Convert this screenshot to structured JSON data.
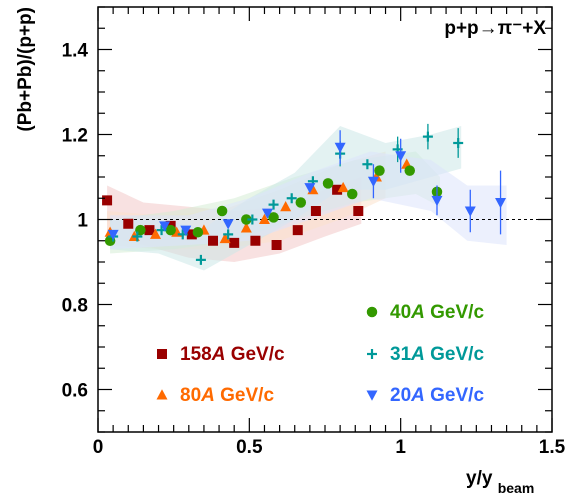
{
  "chart_data": {
    "type": "scatter",
    "title": "p+p→π⁻+X",
    "xlabel": "y/y",
    "xlabel_sub": "beam",
    "ylabel": "(Pb+Pb)/(p+p)",
    "xlim": [
      0,
      1.5
    ],
    "ylim": [
      0.5,
      1.5
    ],
    "x_ticks": [
      0,
      0.5,
      1,
      1.5
    ],
    "x_tick_labels": [
      "0",
      "0.5",
      "1",
      "1.5"
    ],
    "y_ticks": [
      0.6,
      0.8,
      1.0,
      1.2,
      1.4
    ],
    "y_tick_labels": [
      "0.6",
      "0.8",
      "1",
      "1.2",
      "1.4"
    ],
    "reference_line": 1.0,
    "legend_position": "bottom",
    "series": [
      {
        "name_value": "158",
        "name_unit": "GeV/c",
        "name_italic": "A",
        "color": "#990000",
        "marker": "square",
        "band": {
          "color": "#f2c9c9",
          "x": [
            0.03,
            0.15,
            0.3,
            0.45,
            0.6,
            0.75,
            0.87
          ],
          "lower": [
            0.96,
            0.94,
            0.91,
            0.9,
            0.92,
            0.96,
            0.99
          ],
          "upper": [
            1.08,
            1.04,
            1.03,
            1.02,
            1.03,
            1.07,
            1.1
          ]
        },
        "points": [
          {
            "x": 0.03,
            "y": 1.045,
            "err": 0.0
          },
          {
            "x": 0.1,
            "y": 0.99,
            "err": 0.0
          },
          {
            "x": 0.17,
            "y": 0.975,
            "err": 0.0
          },
          {
            "x": 0.24,
            "y": 0.985,
            "err": 0.0
          },
          {
            "x": 0.31,
            "y": 0.965,
            "err": 0.0
          },
          {
            "x": 0.38,
            "y": 0.95,
            "err": 0.0
          },
          {
            "x": 0.45,
            "y": 0.945,
            "err": 0.0
          },
          {
            "x": 0.52,
            "y": 0.95,
            "err": 0.0
          },
          {
            "x": 0.59,
            "y": 0.94,
            "err": 0.0
          },
          {
            "x": 0.66,
            "y": 0.975,
            "err": 0.0
          },
          {
            "x": 0.72,
            "y": 1.02,
            "err": 0.0
          },
          {
            "x": 0.79,
            "y": 1.07,
            "err": 0.0
          },
          {
            "x": 0.86,
            "y": 1.02,
            "err": 0.0
          }
        ]
      },
      {
        "name_value": "80",
        "name_unit": "GeV/c",
        "name_italic": "A",
        "color": "#ff6a00",
        "marker": "triangle-up",
        "band": {
          "color": "#fbe2cc",
          "x": [
            0.03,
            0.2,
            0.4,
            0.6,
            0.8,
            0.95
          ],
          "lower": [
            0.94,
            0.93,
            0.93,
            0.95,
            1.0,
            1.05
          ],
          "upper": [
            1.02,
            1.01,
            1.02,
            1.07,
            1.13,
            1.16
          ]
        },
        "points": [
          {
            "x": 0.04,
            "y": 0.97,
            "err": 0.0
          },
          {
            "x": 0.12,
            "y": 0.96,
            "err": 0.0
          },
          {
            "x": 0.19,
            "y": 0.965,
            "err": 0.0
          },
          {
            "x": 0.26,
            "y": 0.97,
            "err": 0.0
          },
          {
            "x": 0.35,
            "y": 0.975,
            "err": 0.0
          },
          {
            "x": 0.42,
            "y": 0.955,
            "err": 0.0
          },
          {
            "x": 0.49,
            "y": 0.98,
            "err": 0.0
          },
          {
            "x": 0.55,
            "y": 1.0,
            "err": 0.0
          },
          {
            "x": 0.62,
            "y": 1.03,
            "err": 0.0
          },
          {
            "x": 0.71,
            "y": 1.07,
            "err": 0.0
          },
          {
            "x": 0.81,
            "y": 1.075,
            "err": 0.0
          },
          {
            "x": 0.92,
            "y": 1.1,
            "err": 0.0
          },
          {
            "x": 1.02,
            "y": 1.13,
            "err": 0.0
          }
        ]
      },
      {
        "name_value": "40",
        "name_unit": "GeV/c",
        "name_italic": "A",
        "color": "#339900",
        "marker": "circle",
        "band": {
          "color": "#d5ecd5",
          "x": [
            0.04,
            0.25,
            0.45,
            0.65,
            0.85,
            1.05,
            1.13
          ],
          "lower": [
            0.92,
            0.93,
            0.95,
            1.0,
            1.04,
            1.06,
            1.03
          ],
          "upper": [
            1.0,
            1.02,
            1.05,
            1.1,
            1.14,
            1.16,
            1.1
          ]
        },
        "points": [
          {
            "x": 0.04,
            "y": 0.95,
            "err": 0.0
          },
          {
            "x": 0.14,
            "y": 0.975,
            "err": 0.0
          },
          {
            "x": 0.24,
            "y": 0.975,
            "err": 0.0
          },
          {
            "x": 0.33,
            "y": 0.97,
            "err": 0.0
          },
          {
            "x": 0.41,
            "y": 1.02,
            "err": 0.0
          },
          {
            "x": 0.49,
            "y": 1.0,
            "err": 0.0
          },
          {
            "x": 0.58,
            "y": 1.005,
            "err": 0.0
          },
          {
            "x": 0.67,
            "y": 1.04,
            "err": 0.0
          },
          {
            "x": 0.76,
            "y": 1.085,
            "err": 0.0
          },
          {
            "x": 0.84,
            "y": 1.06,
            "err": 0.0
          },
          {
            "x": 0.93,
            "y": 1.115,
            "err": 0.0
          },
          {
            "x": 1.03,
            "y": 1.115,
            "err": 0.0
          },
          {
            "x": 1.12,
            "y": 1.065,
            "err": 0.0
          }
        ]
      },
      {
        "name_value": "31",
        "name_unit": "GeV/c",
        "name_italic": "A",
        "color": "#009999",
        "marker": "plus",
        "band": {
          "color": "#cce8e8",
          "x": [
            0.04,
            0.2,
            0.35,
            0.5,
            0.65,
            0.8,
            0.95,
            1.1,
            1.2
          ],
          "lower": [
            0.93,
            0.92,
            0.88,
            0.94,
            1.0,
            1.07,
            1.07,
            1.1,
            1.12
          ],
          "upper": [
            1.0,
            1.0,
            0.98,
            1.05,
            1.11,
            1.22,
            1.18,
            1.2,
            1.22
          ]
        },
        "points": [
          {
            "x": 0.05,
            "y": 0.96,
            "err": 0.0
          },
          {
            "x": 0.13,
            "y": 0.96,
            "err": 0.0
          },
          {
            "x": 0.21,
            "y": 0.975,
            "err": 0.0
          },
          {
            "x": 0.28,
            "y": 0.965,
            "err": 0.0
          },
          {
            "x": 0.34,
            "y": 0.905,
            "err": 0.0
          },
          {
            "x": 0.43,
            "y": 0.965,
            "err": 0.0
          },
          {
            "x": 0.51,
            "y": 1.0,
            "err": 0.0
          },
          {
            "x": 0.58,
            "y": 1.035,
            "err": 0.0
          },
          {
            "x": 0.64,
            "y": 1.05,
            "err": 0.0
          },
          {
            "x": 0.71,
            "y": 1.09,
            "err": 0.0
          },
          {
            "x": 0.8,
            "y": 1.155,
            "err": 0.03
          },
          {
            "x": 0.89,
            "y": 1.13,
            "err": 0.0
          },
          {
            "x": 0.99,
            "y": 1.165,
            "err": 0.03
          },
          {
            "x": 1.09,
            "y": 1.195,
            "err": 0.03
          },
          {
            "x": 1.19,
            "y": 1.18,
            "err": 0.035
          }
        ]
      },
      {
        "name_value": "20",
        "name_unit": "GeV/c",
        "name_italic": "A",
        "color": "#3366ff",
        "marker": "triangle-down",
        "band": {
          "color": "#dce4fb",
          "x": [
            0.04,
            0.3,
            0.5,
            0.7,
            0.9,
            1.1,
            1.22,
            1.35
          ],
          "lower": [
            0.93,
            0.94,
            0.95,
            1.0,
            1.05,
            1.02,
            0.95,
            0.94
          ],
          "upper": [
            1.01,
            1.01,
            1.05,
            1.11,
            1.16,
            1.14,
            1.08,
            1.08
          ]
        },
        "points": [
          {
            "x": 0.05,
            "y": 0.965,
            "err": 0.0
          },
          {
            "x": 0.22,
            "y": 0.985,
            "err": 0.0
          },
          {
            "x": 0.29,
            "y": 0.975,
            "err": 0.0
          },
          {
            "x": 0.43,
            "y": 0.99,
            "err": 0.0
          },
          {
            "x": 0.56,
            "y": 1.015,
            "err": 0.0
          },
          {
            "x": 0.7,
            "y": 1.075,
            "err": 0.0
          },
          {
            "x": 0.8,
            "y": 1.17,
            "err": 0.04
          },
          {
            "x": 0.91,
            "y": 1.09,
            "err": 0.04
          },
          {
            "x": 1.0,
            "y": 1.15,
            "err": 0.04
          },
          {
            "x": 1.12,
            "y": 1.045,
            "err": 0.035
          },
          {
            "x": 1.23,
            "y": 1.02,
            "err": 0.05
          },
          {
            "x": 1.33,
            "y": 1.04,
            "err": 0.075
          }
        ]
      }
    ]
  }
}
